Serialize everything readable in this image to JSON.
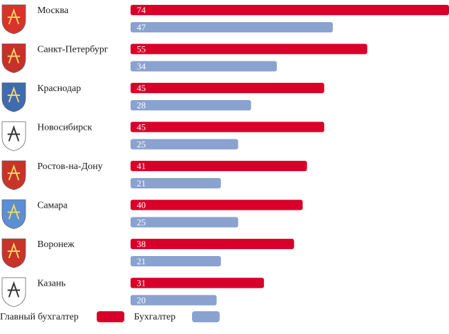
{
  "colors": {
    "primary": "#d8002a",
    "secondary": "#8aa2d0"
  },
  "legend": {
    "primary_label": "Главный бухгалтер",
    "secondary_label": "Бухгалтер"
  },
  "chart_data": {
    "type": "bar",
    "orientation": "horizontal",
    "categories": [
      "Москва",
      "Санкт-Петербург",
      "Краснодар",
      "Новосибирск",
      "Ростов-на-Дону",
      "Самара",
      "Воронеж",
      "Казань"
    ],
    "series": [
      {
        "name": "Главный бухгалтер",
        "values": [
          74,
          55,
          45,
          45,
          41,
          40,
          38,
          31
        ]
      },
      {
        "name": "Бухгалтер",
        "values": [
          47,
          34,
          28,
          25,
          21,
          25,
          21,
          20
        ]
      }
    ],
    "xlim": [
      0,
      74
    ],
    "grid": false,
    "legend_position": "bottom-left",
    "data_labels": true
  }
}
